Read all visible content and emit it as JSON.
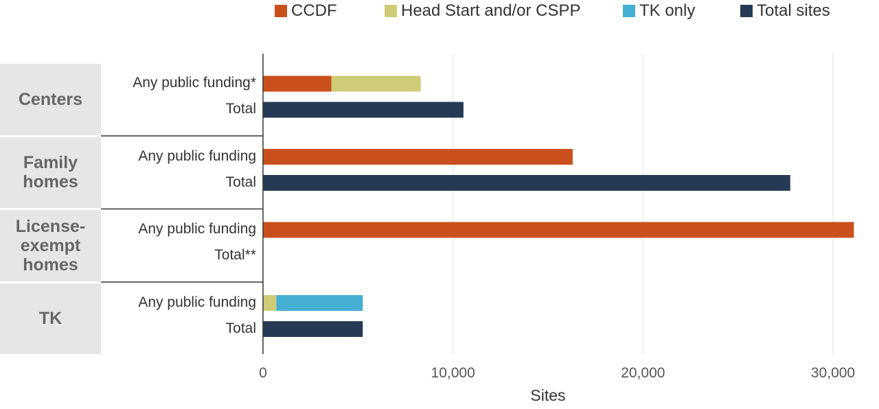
{
  "legend": [
    {
      "label": "CCDF",
      "color": "#c9501c"
    },
    {
      "label": "Head Start and/or CSPP",
      "color": "#cfcc78"
    },
    {
      "label": "TK only",
      "color": "#45afd3"
    },
    {
      "label": "Total sites",
      "color": "#263a55"
    }
  ],
  "chart_data": {
    "type": "bar",
    "orientation": "horizontal",
    "stacked": true,
    "xlabel": "Sites",
    "xlim": [
      0,
      31500
    ],
    "xticks": [
      0,
      10000,
      20000,
      30000
    ],
    "xtick_labels": [
      "0",
      "10,000",
      "20,000",
      "30,000"
    ],
    "grid": true,
    "legend_position": "top",
    "groups": [
      {
        "label": "Centers",
        "rows": [
          {
            "label": "Any public funding*",
            "segments": [
              {
                "series": "CCDF",
                "value": 3600
              },
              {
                "series": "Head Start and/or CSPP",
                "value": 4700
              }
            ]
          },
          {
            "label": "Total",
            "segments": [
              {
                "series": "Total sites",
                "value": 10550
              }
            ]
          }
        ]
      },
      {
        "label": "Family homes",
        "rows": [
          {
            "label": "Any public funding",
            "segments": [
              {
                "series": "CCDF",
                "value": 16300
              }
            ]
          },
          {
            "label": "Total",
            "segments": [
              {
                "series": "Total sites",
                "value": 27750
              }
            ]
          }
        ]
      },
      {
        "label": "License-exempt homes",
        "rows": [
          {
            "label": "Any public funding",
            "segments": [
              {
                "series": "CCDF",
                "value": 31100
              }
            ]
          },
          {
            "label": "Total**",
            "segments": [
              {
                "series": "Total sites",
                "value": 0
              }
            ]
          }
        ]
      },
      {
        "label": "TK",
        "rows": [
          {
            "label": "Any public funding",
            "segments": [
              {
                "series": "Head Start and/or CSPP",
                "value": 700
              },
              {
                "series": "TK only",
                "value": 4550
              }
            ]
          },
          {
            "label": "Total",
            "segments": [
              {
                "series": "Total sites",
                "value": 5250
              }
            ]
          }
        ]
      }
    ]
  }
}
